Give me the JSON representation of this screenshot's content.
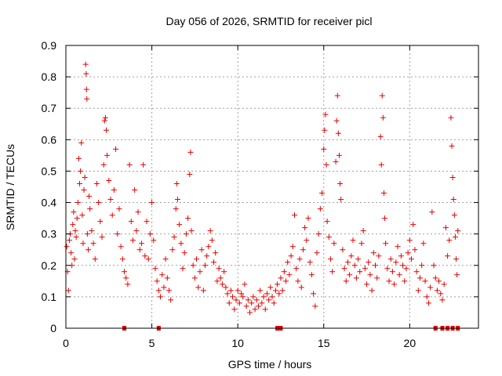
{
  "chart_data": {
    "type": "scatter",
    "title": "Day 056 of 2026, SRMTID for receiver picl",
    "xlabel": "GPS time / hours",
    "ylabel": "SRMTID / TECUs",
    "xlim": [
      0,
      24
    ],
    "ylim": [
      0,
      0.9
    ],
    "xticks": [
      0,
      5,
      10,
      15,
      20
    ],
    "yticks": [
      0,
      0.1,
      0.2,
      0.3,
      0.4,
      0.5,
      0.6,
      0.7,
      0.8,
      0.9
    ],
    "grid": true,
    "marker": "+",
    "color": "#e60000",
    "baseline_gap_times": [
      3.4,
      5.4,
      12.3,
      12.5,
      21.5,
      21.9,
      22.2,
      22.5,
      22.8
    ],
    "series": [
      {
        "name": "SRMTID",
        "points": [
          [
            0.05,
            0.26
          ],
          [
            0.1,
            0.18
          ],
          [
            0.15,
            0.12
          ],
          [
            0.2,
            0.28
          ],
          [
            0.25,
            0.3
          ],
          [
            0.3,
            0.24
          ],
          [
            0.35,
            0.2
          ],
          [
            0.4,
            0.33
          ],
          [
            0.45,
            0.37
          ],
          [
            0.5,
            0.22
          ],
          [
            0.55,
            0.31
          ],
          [
            0.6,
            0.29
          ],
          [
            0.65,
            0.35
          ],
          [
            0.7,
            0.4
          ],
          [
            0.75,
            0.54
          ],
          [
            0.8,
            0.46
          ],
          [
            0.85,
            0.5
          ],
          [
            0.9,
            0.59
          ],
          [
            0.95,
            0.36
          ],
          [
            1.0,
            0.27
          ],
          [
            1.05,
            0.44
          ],
          [
            1.1,
            0.48
          ],
          [
            1.15,
            0.84
          ],
          [
            1.18,
            0.81
          ],
          [
            1.2,
            0.76
          ],
          [
            1.22,
            0.73
          ],
          [
            1.25,
            0.3
          ],
          [
            1.3,
            0.25
          ],
          [
            1.35,
            0.42
          ],
          [
            1.4,
            0.38
          ],
          [
            1.5,
            0.31
          ],
          [
            1.6,
            0.27
          ],
          [
            1.7,
            0.22
          ],
          [
            1.8,
            0.46
          ],
          [
            1.9,
            0.4
          ],
          [
            2.0,
            0.34
          ],
          [
            2.1,
            0.29
          ],
          [
            2.2,
            0.52
          ],
          [
            2.25,
            0.66
          ],
          [
            2.3,
            0.67
          ],
          [
            2.35,
            0.63
          ],
          [
            2.4,
            0.55
          ],
          [
            2.5,
            0.47
          ],
          [
            2.6,
            0.41
          ],
          [
            2.7,
            0.36
          ],
          [
            2.8,
            0.44
          ],
          [
            2.9,
            0.57
          ],
          [
            3.0,
            0.3
          ],
          [
            3.1,
            0.38
          ],
          [
            3.2,
            0.26
          ],
          [
            3.3,
            0.22
          ],
          [
            3.4,
            0.18
          ],
          [
            3.5,
            0.16
          ],
          [
            3.6,
            0.14
          ],
          [
            3.7,
            0.52
          ],
          [
            3.8,
            0.34
          ],
          [
            3.9,
            0.28
          ],
          [
            4.0,
            0.44
          ],
          [
            4.1,
            0.31
          ],
          [
            4.2,
            0.37
          ],
          [
            4.3,
            0.25
          ],
          [
            4.4,
            0.27
          ],
          [
            4.5,
            0.52
          ],
          [
            4.6,
            0.23
          ],
          [
            4.7,
            0.34
          ],
          [
            4.8,
            0.22
          ],
          [
            4.9,
            0.3
          ],
          [
            5.0,
            0.4
          ],
          [
            5.1,
            0.28
          ],
          [
            5.2,
            0.19
          ],
          [
            5.3,
            0.15
          ],
          [
            5.4,
            0.12
          ],
          [
            5.5,
            0.1
          ],
          [
            5.6,
            0.17
          ],
          [
            5.7,
            0.13
          ],
          [
            5.8,
            0.22
          ],
          [
            5.9,
            0.16
          ],
          [
            6.0,
            0.12
          ],
          [
            6.1,
            0.09
          ],
          [
            6.2,
            0.25
          ],
          [
            6.3,
            0.29
          ],
          [
            6.4,
            0.38
          ],
          [
            6.45,
            0.46
          ],
          [
            6.5,
            0.41
          ],
          [
            6.6,
            0.33
          ],
          [
            6.7,
            0.27
          ],
          [
            6.8,
            0.19
          ],
          [
            6.9,
            0.24
          ],
          [
            7.0,
            0.3
          ],
          [
            7.1,
            0.35
          ],
          [
            7.2,
            0.49
          ],
          [
            7.25,
            0.56
          ],
          [
            7.3,
            0.31
          ],
          [
            7.4,
            0.2
          ],
          [
            7.5,
            0.16
          ],
          [
            7.6,
            0.22
          ],
          [
            7.7,
            0.13
          ],
          [
            7.8,
            0.18
          ],
          [
            7.9,
            0.25
          ],
          [
            8.0,
            0.12
          ],
          [
            8.1,
            0.2
          ],
          [
            8.2,
            0.23
          ],
          [
            8.3,
            0.26
          ],
          [
            8.4,
            0.31
          ],
          [
            8.5,
            0.28
          ],
          [
            8.6,
            0.21
          ],
          [
            8.7,
            0.24
          ],
          [
            8.8,
            0.15
          ],
          [
            8.9,
            0.19
          ],
          [
            9.0,
            0.16
          ],
          [
            9.1,
            0.14
          ],
          [
            9.2,
            0.18
          ],
          [
            9.3,
            0.13
          ],
          [
            9.4,
            0.11
          ],
          [
            9.5,
            0.08
          ],
          [
            9.6,
            0.12
          ],
          [
            9.7,
            0.1
          ],
          [
            9.8,
            0.06
          ],
          [
            9.9,
            0.09
          ],
          [
            10.0,
            0.12
          ],
          [
            10.1,
            0.08
          ],
          [
            10.2,
            0.11
          ],
          [
            10.3,
            0.1
          ],
          [
            10.4,
            0.14
          ],
          [
            10.5,
            0.07
          ],
          [
            10.6,
            0.09
          ],
          [
            10.7,
            0.05
          ],
          [
            10.8,
            0.08
          ],
          [
            10.9,
            0.1
          ],
          [
            11.0,
            0.06
          ],
          [
            11.1,
            0.09
          ],
          [
            11.2,
            0.07
          ],
          [
            11.3,
            0.12
          ],
          [
            11.4,
            0.08
          ],
          [
            11.5,
            0.1
          ],
          [
            11.6,
            0.06
          ],
          [
            11.7,
            0.11
          ],
          [
            11.8,
            0.09
          ],
          [
            11.9,
            0.13
          ],
          [
            12.0,
            0.1
          ],
          [
            12.1,
            0.08
          ],
          [
            12.2,
            0.12
          ],
          [
            12.3,
            0.14
          ],
          [
            12.4,
            0.11
          ],
          [
            12.5,
            0.16
          ],
          [
            12.6,
            0.12
          ],
          [
            12.7,
            0.18
          ],
          [
            12.8,
            0.15
          ],
          [
            12.9,
            0.21
          ],
          [
            13.0,
            0.17
          ],
          [
            13.1,
            0.23
          ],
          [
            13.2,
            0.26
          ],
          [
            13.3,
            0.36
          ],
          [
            13.4,
            0.19
          ],
          [
            13.5,
            0.15
          ],
          [
            13.6,
            0.22
          ],
          [
            13.7,
            0.13
          ],
          [
            13.8,
            0.25
          ],
          [
            13.9,
            0.32
          ],
          [
            14.0,
            0.28
          ],
          [
            14.1,
            0.35
          ],
          [
            14.2,
            0.21
          ],
          [
            14.3,
            0.17
          ],
          [
            14.4,
            0.11
          ],
          [
            14.5,
            0.07
          ],
          [
            14.6,
            0.24
          ],
          [
            14.7,
            0.3
          ],
          [
            14.8,
            0.38
          ],
          [
            14.9,
            0.43
          ],
          [
            15.0,
            0.57
          ],
          [
            15.05,
            0.63
          ],
          [
            15.1,
            0.68
          ],
          [
            15.15,
            0.52
          ],
          [
            15.2,
            0.34
          ],
          [
            15.3,
            0.29
          ],
          [
            15.4,
            0.22
          ],
          [
            15.5,
            0.18
          ],
          [
            15.6,
            0.27
          ],
          [
            15.7,
            0.53
          ],
          [
            15.75,
            0.66
          ],
          [
            15.8,
            0.74
          ],
          [
            15.85,
            0.62
          ],
          [
            15.9,
            0.55
          ],
          [
            15.95,
            0.46
          ],
          [
            16.0,
            0.41
          ],
          [
            16.1,
            0.25
          ],
          [
            16.2,
            0.19
          ],
          [
            16.3,
            0.15
          ],
          [
            16.4,
            0.21
          ],
          [
            16.5,
            0.17
          ],
          [
            16.6,
            0.23
          ],
          [
            16.7,
            0.28
          ],
          [
            16.8,
            0.2
          ],
          [
            16.9,
            0.16
          ],
          [
            17.0,
            0.22
          ],
          [
            17.1,
            0.18
          ],
          [
            17.2,
            0.27
          ],
          [
            17.3,
            0.31
          ],
          [
            17.4,
            0.19
          ],
          [
            17.5,
            0.14
          ],
          [
            17.6,
            0.21
          ],
          [
            17.7,
            0.17
          ],
          [
            17.8,
            0.12
          ],
          [
            17.9,
            0.24
          ],
          [
            18.0,
            0.2
          ],
          [
            18.1,
            0.16
          ],
          [
            18.2,
            0.23
          ],
          [
            18.3,
            0.61
          ],
          [
            18.35,
            0.52
          ],
          [
            18.4,
            0.74
          ],
          [
            18.45,
            0.67
          ],
          [
            18.5,
            0.43
          ],
          [
            18.55,
            0.35
          ],
          [
            18.6,
            0.27
          ],
          [
            18.7,
            0.19
          ],
          [
            18.8,
            0.15
          ],
          [
            18.9,
            0.22
          ],
          [
            19.0,
            0.18
          ],
          [
            19.1,
            0.14
          ],
          [
            19.2,
            0.21
          ],
          [
            19.3,
            0.26
          ],
          [
            19.4,
            0.17
          ],
          [
            19.5,
            0.23
          ],
          [
            19.6,
            0.2
          ],
          [
            19.7,
            0.15
          ],
          [
            19.8,
            0.19
          ],
          [
            19.9,
            0.24
          ],
          [
            20.0,
            0.28
          ],
          [
            20.1,
            0.22
          ],
          [
            20.2,
            0.33
          ],
          [
            20.3,
            0.25
          ],
          [
            20.4,
            0.18
          ],
          [
            20.5,
            0.12
          ],
          [
            20.6,
            0.16
          ],
          [
            20.7,
            0.2
          ],
          [
            20.8,
            0.27
          ],
          [
            20.9,
            0.15
          ],
          [
            21.0,
            0.1
          ],
          [
            21.1,
            0.08
          ],
          [
            21.2,
            0.13
          ],
          [
            21.3,
            0.37
          ],
          [
            21.4,
            0.2
          ],
          [
            21.5,
            0.16
          ],
          [
            21.6,
            0.12
          ],
          [
            21.7,
            0.15
          ],
          [
            21.8,
            0.11
          ],
          [
            21.9,
            0.09
          ],
          [
            22.0,
            0.14
          ],
          [
            22.1,
            0.32
          ],
          [
            22.2,
            0.23
          ],
          [
            22.3,
            0.28
          ],
          [
            22.4,
            0.67
          ],
          [
            22.45,
            0.58
          ],
          [
            22.5,
            0.48
          ],
          [
            22.55,
            0.41
          ],
          [
            22.6,
            0.36
          ],
          [
            22.65,
            0.29
          ],
          [
            22.7,
            0.22
          ],
          [
            22.75,
            0.17
          ],
          [
            22.8,
            0.31
          ]
        ]
      }
    ]
  }
}
